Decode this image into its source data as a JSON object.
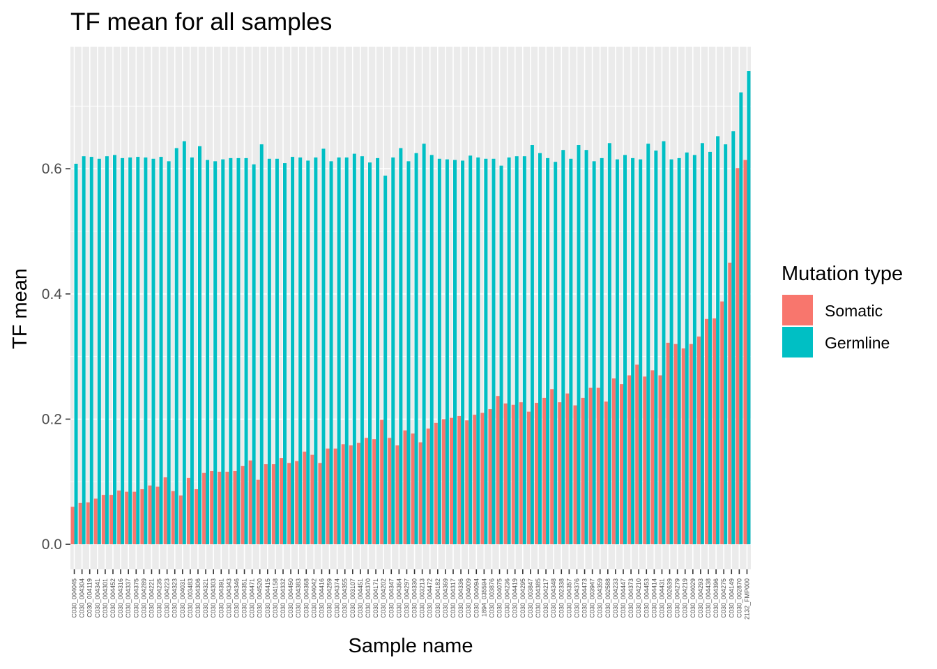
{
  "chart_data": {
    "type": "bar",
    "title": "TF mean for all samples",
    "xlabel": "Sample name",
    "ylabel": "TF mean",
    "ylim": [
      -0.04,
      0.795
    ],
    "yticks": [
      0.0,
      0.2,
      0.4,
      0.6
    ],
    "ytick_labels": [
      "0.0",
      "0.2",
      "0.4",
      "0.6"
    ],
    "grid": true,
    "legend": {
      "title": "Mutation type",
      "placement": "right",
      "entries": [
        "Somatic",
        "Germline"
      ]
    },
    "categories": [
      "C030_004045",
      "C030_004304",
      "C030_004119",
      "C030_004341",
      "C030_004301",
      "C030_004452",
      "C030_004316",
      "C030_004337",
      "C030_004375",
      "C030_004289",
      "C030_004221",
      "C030_004235",
      "C030_004223",
      "C030_004323",
      "C030_004031",
      "C030_003483",
      "C030_004306",
      "C030_004321",
      "C030_004303",
      "C030_004391",
      "C030_004343",
      "C030_004346",
      "C030_004351",
      "C030_004471",
      "C030_004520",
      "C030_004415",
      "C030_004158",
      "C030_004332",
      "C030_004450",
      "C030_004383",
      "C030_004368",
      "C030_004042",
      "C030_004416",
      "C030_004259",
      "C030_004374",
      "C030_004355",
      "C030_003107",
      "C030_004451",
      "C030_004370",
      "C030_004171",
      "C030_004202",
      "C030_004347",
      "C030_004364",
      "C030_004297",
      "C030_004330",
      "C030_003213",
      "C030_004472",
      "C030_004182",
      "C030_004369",
      "C030_004317",
      "C030_004336",
      "C030_004009",
      "C030_004094",
      "1894_035594",
      "C030_003876",
      "C030_004075",
      "C030_004236",
      "C030_004419",
      "C030_004295",
      "C030_003847",
      "C030_004385",
      "C030_004217",
      "C030_004348",
      "C030_002338",
      "C030_004357",
      "C030_004376",
      "C030_004473",
      "C030_003947",
      "C030_004359",
      "C030_002588",
      "C030_004233",
      "C030_004447",
      "C030_004373",
      "C030_004210",
      "C030_004453",
      "C030_004414",
      "C030_004431",
      "C030_002639",
      "C030_004279",
      "C030_004219",
      "C030_004029",
      "C030_004293",
      "C030_004438",
      "C030_004396",
      "C030_004275",
      "C030_004149",
      "C030_002870",
      "2132_FMP000"
    ],
    "series": [
      {
        "name": "Somatic",
        "color": "#F8766D",
        "values": [
          0.06,
          0.066,
          0.067,
          0.073,
          0.079,
          0.079,
          0.086,
          0.084,
          0.084,
          0.088,
          0.094,
          0.092,
          0.107,
          0.085,
          0.078,
          0.106,
          0.088,
          0.114,
          0.117,
          0.116,
          0.116,
          0.117,
          0.125,
          0.134,
          0.103,
          0.128,
          0.128,
          0.138,
          0.13,
          0.133,
          0.148,
          0.143,
          0.13,
          0.153,
          0.153,
          0.16,
          0.158,
          0.162,
          0.17,
          0.168,
          0.199,
          0.17,
          0.158,
          0.182,
          0.177,
          0.163,
          0.185,
          0.194,
          0.2,
          0.202,
          0.205,
          0.198,
          0.207,
          0.21,
          0.216,
          0.237,
          0.225,
          0.223,
          0.227,
          0.212,
          0.226,
          0.234,
          0.248,
          0.227,
          0.241,
          0.222,
          0.234,
          0.25,
          0.25,
          0.228,
          0.265,
          0.256,
          0.27,
          0.287,
          0.268,
          0.278,
          0.27,
          0.322,
          0.32,
          0.313,
          0.32,
          0.332,
          0.36,
          0.361,
          0.388,
          0.45,
          0.601,
          0.614
        ]
      },
      {
        "name": "Germline",
        "color": "#00BFC4",
        "values": [
          0.608,
          0.62,
          0.619,
          0.616,
          0.62,
          0.622,
          0.617,
          0.618,
          0.619,
          0.618,
          0.616,
          0.619,
          0.612,
          0.633,
          0.644,
          0.618,
          0.636,
          0.614,
          0.612,
          0.615,
          0.617,
          0.617,
          0.617,
          0.607,
          0.639,
          0.616,
          0.616,
          0.609,
          0.619,
          0.618,
          0.613,
          0.618,
          0.632,
          0.612,
          0.618,
          0.618,
          0.624,
          0.62,
          0.61,
          0.617,
          0.589,
          0.618,
          0.633,
          0.612,
          0.625,
          0.64,
          0.622,
          0.616,
          0.615,
          0.614,
          0.613,
          0.621,
          0.618,
          0.616,
          0.616,
          0.605,
          0.618,
          0.62,
          0.62,
          0.638,
          0.625,
          0.617,
          0.611,
          0.63,
          0.616,
          0.638,
          0.63,
          0.612,
          0.617,
          0.641,
          0.615,
          0.622,
          0.617,
          0.615,
          0.64,
          0.629,
          0.644,
          0.615,
          0.617,
          0.626,
          0.622,
          0.641,
          0.627,
          0.652,
          0.639,
          0.66,
          0.722,
          0.756
        ]
      }
    ]
  }
}
